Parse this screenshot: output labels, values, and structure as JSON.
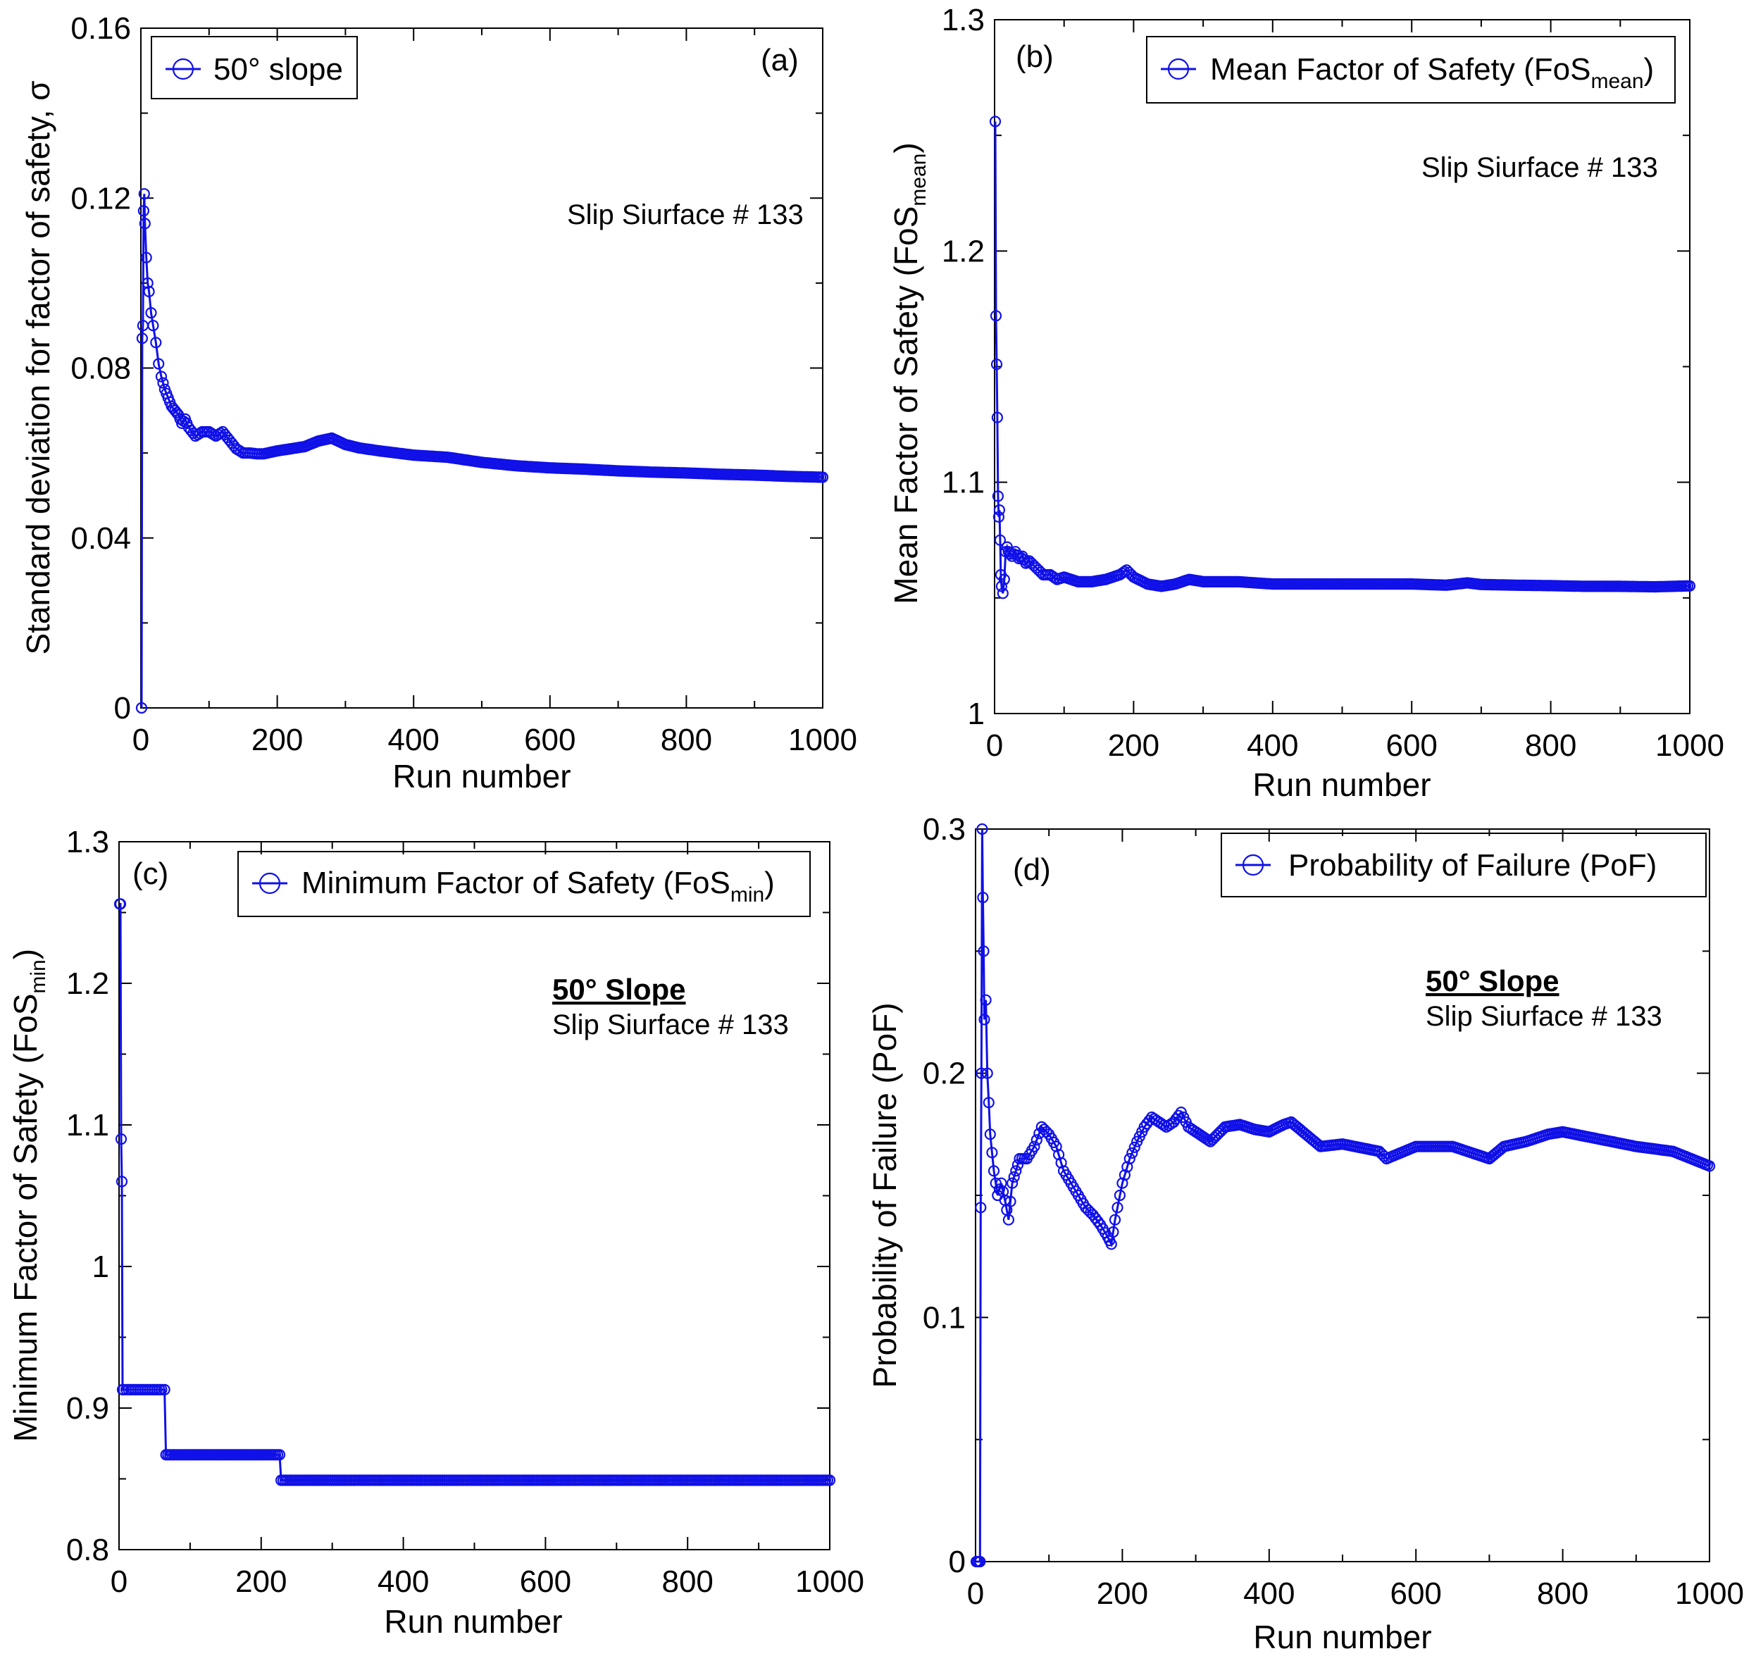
{
  "figure": {
    "color_series": "#1010e8",
    "color_axes": "#000000",
    "background": "#ffffff"
  },
  "chart_data": [
    {
      "id": "a",
      "type": "line",
      "panel_tag": "(a)",
      "legend": [
        "50° slope"
      ],
      "legend_location": "top-left",
      "annotation": {
        "bold": "",
        "text": "Slip Siurface # 133"
      },
      "xlabel": "Run number",
      "ylabel": "Standard deviation for factor of safety, σ",
      "xlim": [
        0,
        1000
      ],
      "ylim": [
        0,
        0.16
      ],
      "xticks": [
        0,
        200,
        400,
        600,
        800,
        1000
      ],
      "yticks": [
        0,
        0.04,
        0.08,
        0.12,
        0.16
      ],
      "yticklabels": [
        "0",
        "0.04",
        "0.08",
        "0.12",
        "0.16"
      ],
      "series": [
        {
          "name": "50° slope",
          "x": [
            1,
            2,
            3,
            4,
            5,
            6,
            8,
            10,
            12,
            15,
            18,
            22,
            26,
            30,
            35,
            40,
            45,
            50,
            55,
            60,
            65,
            70,
            80,
            90,
            100,
            110,
            120,
            130,
            140,
            150,
            160,
            170,
            180,
            200,
            220,
            240,
            260,
            280,
            300,
            320,
            350,
            400,
            450,
            500,
            550,
            600,
            650,
            700,
            750,
            800,
            850,
            900,
            950,
            1000
          ],
          "y": [
            0.0,
            0.087,
            0.09,
            0.117,
            0.121,
            0.114,
            0.106,
            0.1,
            0.098,
            0.093,
            0.09,
            0.086,
            0.081,
            0.078,
            0.075,
            0.073,
            0.071,
            0.07,
            0.069,
            0.067,
            0.068,
            0.066,
            0.064,
            0.065,
            0.065,
            0.064,
            0.065,
            0.063,
            0.061,
            0.06,
            0.06,
            0.0598,
            0.0598,
            0.0605,
            0.061,
            0.0615,
            0.0628,
            0.0635,
            0.062,
            0.0612,
            0.0605,
            0.0595,
            0.059,
            0.0578,
            0.057,
            0.0565,
            0.0562,
            0.0558,
            0.0555,
            0.0553,
            0.055,
            0.0548,
            0.0545,
            0.0543
          ]
        }
      ]
    },
    {
      "id": "b",
      "type": "line",
      "panel_tag": "(b)",
      "legend": [
        "Mean Factor of Safety (FoS",
        "mean",
        ")"
      ],
      "legend_location": "top-right",
      "annotation": {
        "bold": "",
        "text": "Slip Siurface # 133"
      },
      "xlabel": "Run number",
      "ylabel": [
        "Mean Factor of Safety (FoS",
        "mean",
        ")"
      ],
      "xlim": [
        0,
        1000
      ],
      "ylim": [
        1.0,
        1.3
      ],
      "xticks": [
        0,
        200,
        400,
        600,
        800,
        1000
      ],
      "yticks": [
        1.0,
        1.1,
        1.2,
        1.3
      ],
      "yticklabels": [
        "1",
        "1.1",
        "1.2",
        "1.3"
      ],
      "series": [
        {
          "name": "Mean Factor of Safety (FoSmean)",
          "x": [
            1,
            2,
            3,
            4,
            5,
            6,
            7,
            8,
            9,
            10,
            12,
            14,
            16,
            18,
            20,
            25,
            30,
            35,
            40,
            45,
            50,
            60,
            70,
            80,
            90,
            100,
            120,
            140,
            160,
            180,
            190,
            200,
            220,
            240,
            260,
            280,
            300,
            350,
            400,
            450,
            500,
            550,
            600,
            650,
            680,
            700,
            750,
            800,
            850,
            900,
            950,
            1000
          ],
          "y": [
            1.256,
            1.172,
            1.151,
            1.128,
            1.094,
            1.085,
            1.088,
            1.075,
            1.06,
            1.055,
            1.052,
            1.058,
            1.07,
            1.072,
            1.07,
            1.068,
            1.07,
            1.067,
            1.068,
            1.065,
            1.066,
            1.063,
            1.06,
            1.06,
            1.058,
            1.059,
            1.057,
            1.057,
            1.058,
            1.06,
            1.062,
            1.059,
            1.056,
            1.055,
            1.056,
            1.058,
            1.057,
            1.057,
            1.056,
            1.056,
            1.056,
            1.056,
            1.056,
            1.0555,
            1.0565,
            1.0558,
            1.0555,
            1.0553,
            1.055,
            1.055,
            1.0548,
            1.0552
          ]
        }
      ]
    },
    {
      "id": "c",
      "type": "line",
      "panel_tag": "(c)",
      "legend": [
        "Minimum Factor of Safety (FoS",
        "min",
        ")"
      ],
      "legend_location": "top-right",
      "annotation": {
        "bold": "50° Slope",
        "text": "Slip Siurface # 133"
      },
      "xlabel": "Run number",
      "ylabel": [
        "Minimum Factor of Safety (FoS",
        "min",
        ")"
      ],
      "xlim": [
        0,
        1000
      ],
      "ylim": [
        0.8,
        1.3
      ],
      "xticks": [
        0,
        200,
        400,
        600,
        800,
        1000
      ],
      "yticks": [
        0.8,
        0.9,
        1.0,
        1.1,
        1.2,
        1.3
      ],
      "yticklabels": [
        "0.8",
        "0.9",
        "1",
        "1.1",
        "1.2",
        "1.3"
      ],
      "series": [
        {
          "name": "Minimum Factor of Safety (FoSmin)",
          "x": [
            1,
            2,
            3,
            4,
            5,
            6,
            10,
            20,
            30,
            40,
            50,
            60,
            64,
            66,
            80,
            100,
            120,
            140,
            160,
            180,
            200,
            220,
            226,
            228,
            300,
            400,
            500,
            600,
            700,
            800,
            900,
            1000
          ],
          "y": [
            1.256,
            1.256,
            1.09,
            1.06,
            0.913,
            0.913,
            0.913,
            0.913,
            0.913,
            0.913,
            0.913,
            0.913,
            0.913,
            0.867,
            0.867,
            0.867,
            0.867,
            0.867,
            0.867,
            0.867,
            0.867,
            0.867,
            0.867,
            0.849,
            0.849,
            0.849,
            0.849,
            0.849,
            0.849,
            0.849,
            0.849,
            0.849
          ]
        }
      ]
    },
    {
      "id": "d",
      "type": "line",
      "panel_tag": "(d)",
      "legend": [
        "Probability of Failure (PoF)"
      ],
      "legend_location": "top-right",
      "annotation": {
        "bold": "50° Slope",
        "text": "Slip Siurface # 133"
      },
      "xlabel": "Run number",
      "ylabel": "Probability of Failure (PoF)",
      "xlim": [
        0,
        1000
      ],
      "ylim": [
        0,
        0.3
      ],
      "xticks": [
        0,
        200,
        400,
        600,
        800,
        1000
      ],
      "yticks": [
        0,
        0.1,
        0.2,
        0.3
      ],
      "yticklabels": [
        "0",
        "0.1",
        "0.2",
        "0.3"
      ],
      "series": [
        {
          "name": "Probability of Failure (PoF)",
          "x": [
            1,
            2,
            4,
            6,
            7,
            8,
            9,
            10,
            11,
            12,
            14,
            16,
            18,
            20,
            25,
            30,
            35,
            40,
            45,
            50,
            55,
            60,
            70,
            80,
            90,
            100,
            110,
            120,
            130,
            140,
            150,
            160,
            170,
            180,
            185,
            190,
            200,
            210,
            220,
            230,
            240,
            250,
            260,
            270,
            280,
            290,
            300,
            320,
            340,
            360,
            380,
            400,
            420,
            430,
            450,
            470,
            500,
            550,
            560,
            600,
            650,
            700,
            720,
            750,
            780,
            800,
            850,
            900,
            950,
            1000
          ],
          "y": [
            0.0,
            0.0,
            0.0,
            0.0,
            0.145,
            0.2,
            0.3,
            0.272,
            0.25,
            0.222,
            0.23,
            0.2,
            0.188,
            0.175,
            0.16,
            0.15,
            0.155,
            0.148,
            0.14,
            0.155,
            0.16,
            0.165,
            0.165,
            0.17,
            0.178,
            0.175,
            0.17,
            0.16,
            0.155,
            0.15,
            0.145,
            0.142,
            0.138,
            0.133,
            0.13,
            0.14,
            0.155,
            0.165,
            0.172,
            0.178,
            0.182,
            0.18,
            0.178,
            0.18,
            0.184,
            0.178,
            0.176,
            0.172,
            0.178,
            0.179,
            0.177,
            0.176,
            0.179,
            0.18,
            0.175,
            0.17,
            0.171,
            0.168,
            0.165,
            0.17,
            0.17,
            0.165,
            0.17,
            0.172,
            0.175,
            0.176,
            0.173,
            0.17,
            0.168,
            0.162
          ]
        }
      ]
    }
  ]
}
